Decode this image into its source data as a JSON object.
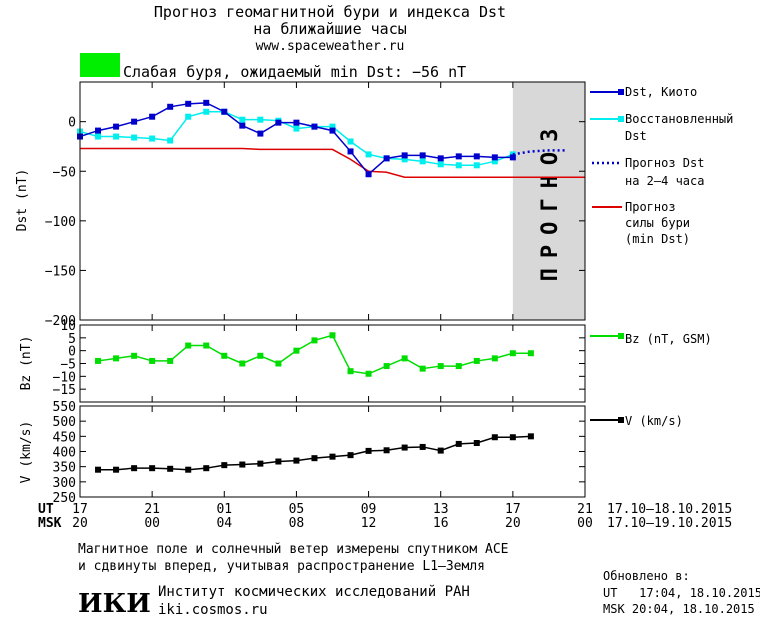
{
  "header": {
    "title_line1": "Прогноз геомагнитной бури и индекса Dst",
    "title_line2": "на ближайшие часы",
    "url": "www.spaceweather.ru",
    "storm_label": "Слабая буря, ожидаемый min Dst: −56 nT",
    "storm_color": "#00ee00"
  },
  "colors": {
    "dst": "#0000cc",
    "restored": "#00eeee",
    "forecast": "#0000cc",
    "storm": "#dd0000",
    "bz": "#00dd00",
    "v": "#000000",
    "forecast_band": "#d8d8d8"
  },
  "chart_data": [
    {
      "type": "line",
      "panel": "dst",
      "ylabel": "Dst (nT)",
      "ylim": [
        -200,
        40
      ],
      "xlim": [
        0,
        28
      ],
      "yticks": [
        0,
        -50,
        -100,
        -150,
        -200
      ],
      "ytick_labels": [
        "0",
        "−50",
        "−100",
        "−150",
        "−200"
      ],
      "forecast_band": {
        "x_start": 24,
        "x_end": 28,
        "label": "ПРОГНОЗ"
      },
      "series": [
        {
          "name": "Dst, Киото",
          "marker": "square",
          "x": [
            0,
            1,
            2,
            3,
            4,
            5,
            6,
            7,
            8,
            9,
            10,
            11,
            12,
            13,
            14,
            15,
            16,
            17,
            18,
            19,
            20,
            21,
            22,
            23,
            24
          ],
          "y": [
            -15,
            -9,
            -5,
            0,
            5,
            15,
            18,
            19,
            10,
            -4,
            -12,
            -1,
            -1,
            -5,
            -9,
            -30,
            -53,
            -37,
            -34,
            -34,
            -37,
            -35,
            -35,
            -36,
            -36
          ]
        },
        {
          "name": "Восстановленный Dst",
          "marker": "square",
          "x": [
            0,
            1,
            2,
            3,
            4,
            5,
            6,
            7,
            8,
            9,
            10,
            11,
            12,
            13,
            14,
            15,
            16,
            17,
            18,
            19,
            20,
            21,
            22,
            23,
            24
          ],
          "y": [
            -10,
            -15,
            -15,
            -16,
            -17,
            -19,
            5,
            10,
            10,
            2,
            2,
            1,
            -7,
            -5,
            -5,
            -20,
            -33,
            -37,
            -38,
            -40,
            -43,
            -44,
            -44,
            -40,
            -33
          ]
        },
        {
          "name": "Прогноз Dst на 2–4 часа",
          "style": "dotted",
          "x": [
            24,
            25,
            26,
            27
          ],
          "y": [
            -33,
            -30,
            -29,
            -29
          ]
        },
        {
          "name": "Прогноз силы бури (min Dst)",
          "style": "solid",
          "x": [
            0,
            9,
            10,
            13,
            14,
            15,
            16,
            17,
            18,
            24,
            28
          ],
          "y": [
            -27,
            -27,
            -28,
            -28,
            -28,
            -38,
            -50,
            -51,
            -56,
            -56,
            -56
          ]
        }
      ]
    },
    {
      "type": "line",
      "panel": "bz",
      "ylabel": "Bz (nT)",
      "ylim": [
        -20,
        10
      ],
      "xlim": [
        0,
        28
      ],
      "yticks": [
        10,
        5,
        0,
        -5,
        -10,
        -15
      ],
      "ytick_labels": [
        "10",
        "5",
        "0",
        "−5",
        "−10",
        "−15"
      ],
      "series": [
        {
          "name": "Bz (nT, GSM)",
          "marker": "square",
          "x": [
            1,
            2,
            3,
            4,
            5,
            6,
            7,
            8,
            9,
            10,
            11,
            12,
            13,
            14,
            15,
            16,
            17,
            18,
            19,
            20,
            21,
            22,
            23,
            24,
            25
          ],
          "y": [
            -4,
            -3,
            -2,
            -4,
            -4,
            2,
            2,
            -2,
            -5,
            -2,
            -5,
            0,
            4,
            6,
            -8,
            -9,
            -6,
            -3,
            -7,
            -6,
            -6,
            -4,
            -3,
            -1,
            -1
          ]
        }
      ]
    },
    {
      "type": "line",
      "panel": "v",
      "ylabel": "V (km/s)",
      "ylim": [
        250,
        550
      ],
      "xlim": [
        0,
        28
      ],
      "yticks": [
        550,
        500,
        450,
        400,
        350,
        300,
        250
      ],
      "ytick_labels": [
        "550",
        "500",
        "450",
        "400",
        "350",
        "300",
        "250"
      ],
      "series": [
        {
          "name": "V (km/s)",
          "marker": "square",
          "x": [
            1,
            2,
            3,
            4,
            5,
            6,
            7,
            8,
            9,
            10,
            11,
            12,
            13,
            14,
            15,
            16,
            17,
            18,
            19,
            20,
            21,
            22,
            23,
            24,
            25
          ],
          "y": [
            340,
            340,
            345,
            345,
            343,
            340,
            345,
            355,
            357,
            360,
            367,
            370,
            378,
            383,
            388,
            402,
            404,
            413,
            415,
            403,
            425,
            428,
            447,
            447,
            450
          ]
        }
      ]
    }
  ],
  "axis": {
    "ut_label": "UT",
    "msk_label": "MSK",
    "ut_ticks": [
      "17",
      "21",
      "01",
      "05",
      "09",
      "13",
      "17",
      "21"
    ],
    "msk_ticks": [
      "20",
      "00",
      "04",
      "08",
      "12",
      "16",
      "20",
      "00"
    ],
    "tick_x": [
      0,
      4,
      8,
      12,
      16,
      20,
      24,
      28
    ],
    "ut_range": "17.10–18.10.2015",
    "msk_range": "17.10–19.10.2015"
  },
  "footer": {
    "note_line1": "Магнитное поле и солнечный ветер измерены спутником ACE",
    "note_line2": "и сдвинуты вперед, учитывая распространение L1–Земля",
    "logo": "ИКИ",
    "institute": "Институт космических исследований РАН",
    "site": "iki.cosmos.ru",
    "updated_label": "Обновлено в:",
    "updated_ut": "UT   17:04, 18.10.2015",
    "updated_msk": "MSK 20:04, 18.10.2015"
  }
}
